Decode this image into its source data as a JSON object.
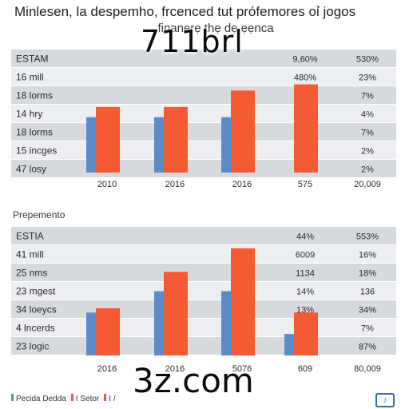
{
  "title": "Minlesen, la despemho, frcenced tut prófemores oỉ jogos",
  "subtitle": "finanẹrẹ thẹ dẹ ẹẹnca",
  "watermark_top": "711brl",
  "watermark_bottom": "3z.com",
  "section2_label": "Prepemento",
  "colors": {
    "blue": "#5b8cc9",
    "orange": "#f45a34",
    "band": "#d6d9de",
    "band_alt": "#eceef1"
  },
  "legend": [
    {
      "label": "Pecida Dedda",
      "color": "#5b8cc9"
    },
    {
      "label": "I Setor",
      "color": "#f45a34"
    },
    {
      "label": "I /",
      "color": "#f45a34"
    }
  ],
  "chart_data": [
    {
      "type": "bar",
      "header": {
        "label": "ESTAM",
        "col1": "9,60%",
        "col2": "530%"
      },
      "rows": [
        {
          "label": "16 mill",
          "col1": "480%",
          "col2": "23%"
        },
        {
          "label": "18 lorms",
          "col1": "",
          "col2": "7%"
        },
        {
          "label": "14 hry",
          "col1": "",
          "col2": "4%"
        },
        {
          "label": "18 lorms",
          "col1": "",
          "col2": "7%"
        },
        {
          "label": "15 incges",
          "col1": "",
          "col2": "2%"
        },
        {
          "label": "47 losy",
          "col1": "",
          "col2": "2%"
        }
      ],
      "categories": [
        "2010",
        "2016",
        "2016",
        "575",
        "20,009"
      ],
      "series": [
        {
          "color_key": "blue",
          "values": [
            2.7,
            2.7,
            2.7,
            null,
            null
          ]
        },
        {
          "color_key": "orange",
          "values": [
            3.2,
            3.2,
            4.0,
            4.3,
            null
          ]
        }
      ],
      "ylim": [
        0,
        6
      ]
    },
    {
      "type": "bar",
      "header": {
        "label": "ESTIA",
        "col1": "44%",
        "col2": "553%"
      },
      "rows": [
        {
          "label": "41 mill",
          "col1": "6009",
          "col2": "16%"
        },
        {
          "label": "25 nms",
          "col1": "1134",
          "col2": "18%"
        },
        {
          "label": "23 mgest",
          "col1": "14%",
          "col2": "136"
        },
        {
          "label": "34 loeycs",
          "col1": "13%",
          "col2": "34%"
        },
        {
          "label": "4 lncerds",
          "col1": "",
          "col2": "7%"
        },
        {
          "label": "23 logic",
          "col1": "",
          "col2": "87%"
        }
      ],
      "categories": [
        "2016",
        "2016",
        "5076",
        "609",
        "80,009"
      ],
      "series": [
        {
          "color_key": "blue",
          "values": [
            2.0,
            3.0,
            3.0,
            1.0,
            null
          ]
        },
        {
          "color_key": "orange",
          "values": [
            2.2,
            3.9,
            5.0,
            2.0,
            null
          ]
        }
      ],
      "ylim": [
        0,
        6
      ]
    }
  ]
}
